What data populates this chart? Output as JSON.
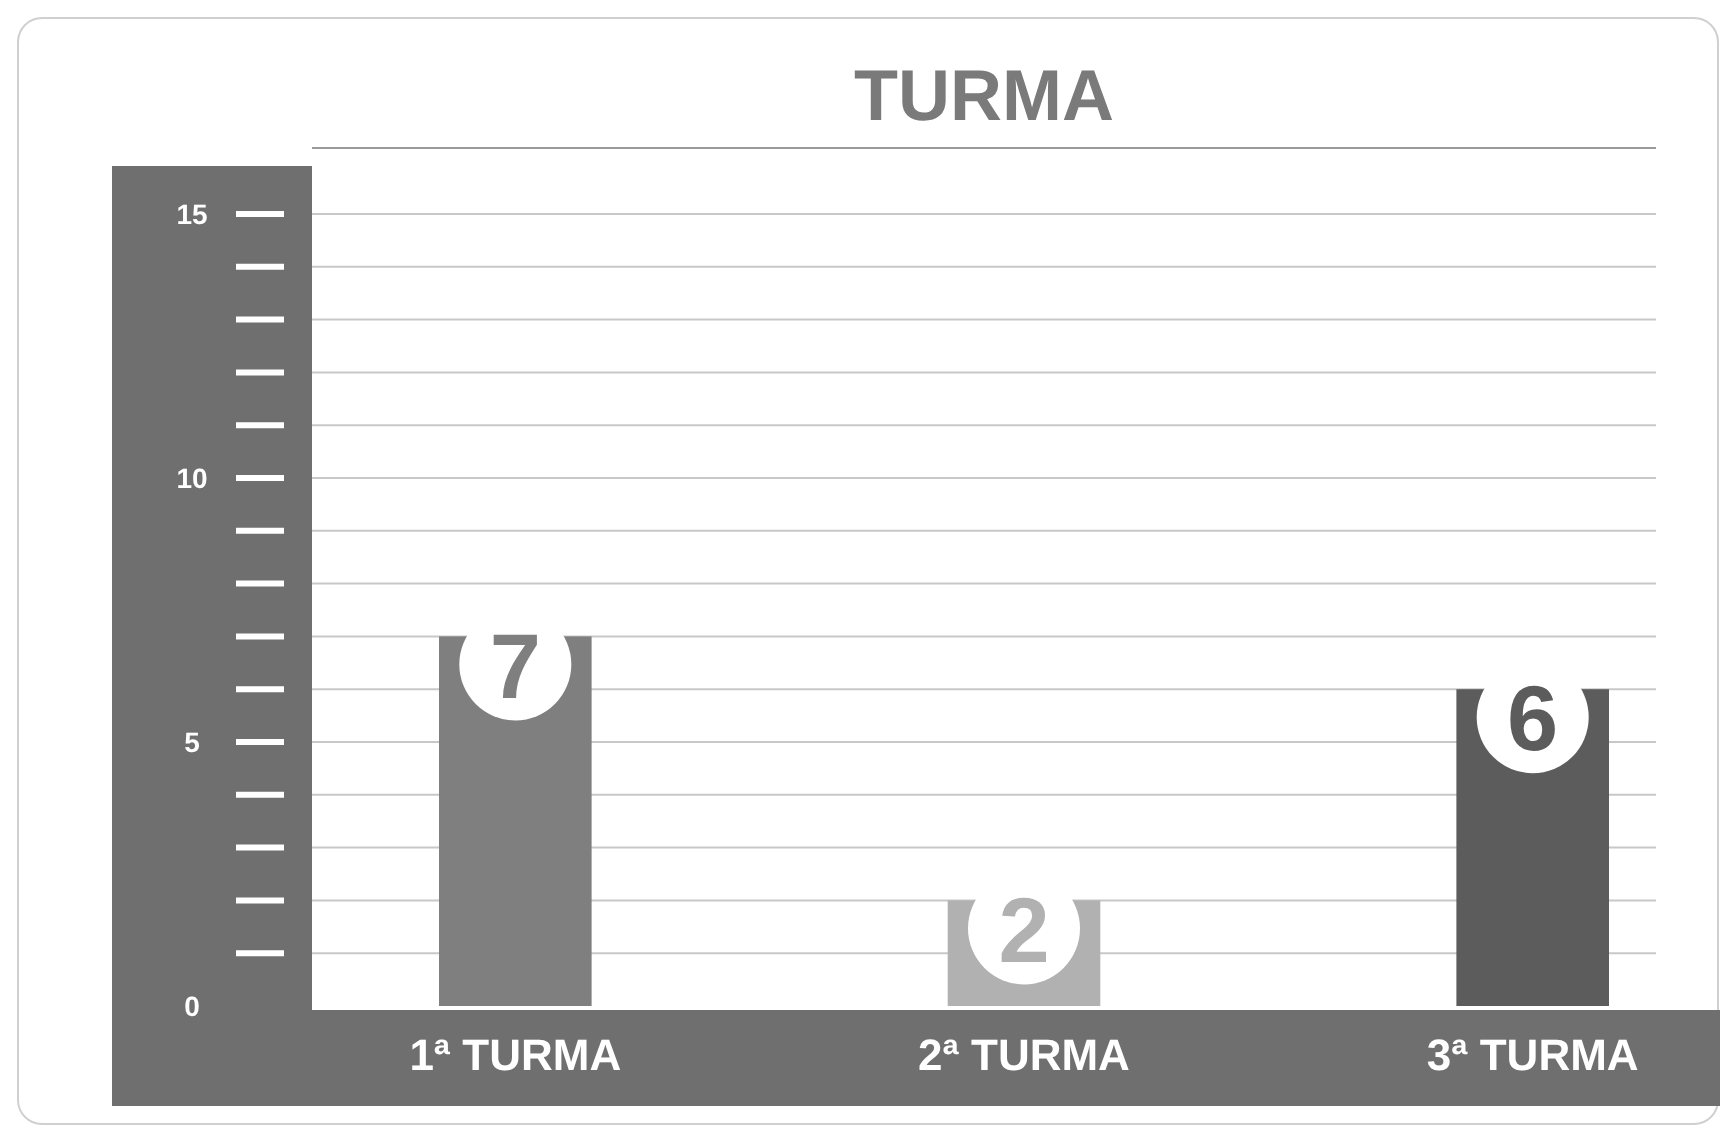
{
  "chart_data": {
    "type": "bar",
    "title": "TURMA",
    "categories": [
      "1ª TURMA",
      "2ª TURMA",
      "3ª TURMA"
    ],
    "values": [
      7,
      2,
      6
    ],
    "colors": [
      "#7f7f7f",
      "#b1b1b1",
      "#5c5c5c"
    ],
    "ylim": [
      0,
      15
    ],
    "yticks": [
      0,
      {
        "value": 1,
        "label": null
      },
      {
        "value": 2,
        "label": null
      },
      {
        "value": 3,
        "label": null
      },
      {
        "value": 4,
        "label": null
      },
      5,
      {
        "value": 6,
        "label": null
      },
      {
        "value": 7,
        "label": null
      },
      {
        "value": 8,
        "label": null
      },
      {
        "value": 9,
        "label": null
      },
      10,
      {
        "value": 11,
        "label": null
      },
      {
        "value": 12,
        "label": null
      },
      {
        "value": 13,
        "label": null
      },
      {
        "value": 14,
        "label": null
      },
      15
    ],
    "grid": "y",
    "data_labels": true
  }
}
